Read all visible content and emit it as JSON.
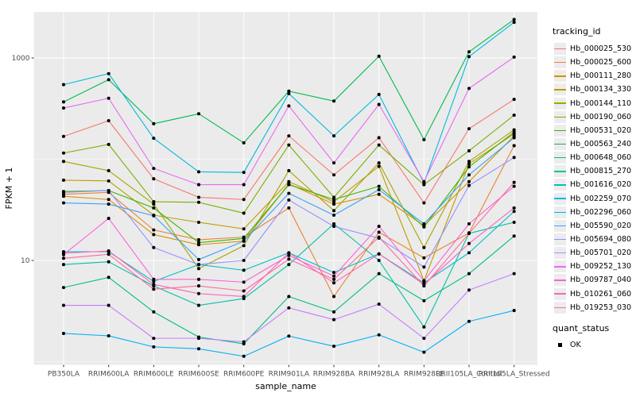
{
  "figure": {
    "background": "#FFFFFF",
    "panel_background": "#EBEBEB",
    "gridline_color": "#FFFFFF",
    "tick_color": "#333333",
    "tick_label_color": "#4D4D4D",
    "axis_title_color": "#000000",
    "point_color": "#000000"
  },
  "chart_data": {
    "type": "line",
    "title": "",
    "xlabel": "sample_name",
    "ylabel": "FPKM + 1",
    "y_scale": "log10",
    "ylim": [
      0.9,
      2900
    ],
    "grid": "on",
    "legend_position": "right",
    "y_ticks": [
      {
        "label": "1000",
        "value": 1000
      },
      {
        "label": "10",
        "value": 10
      }
    ],
    "y_minor_gridlines": [
      100,
      1
    ],
    "categories": [
      "PB350LA",
      "RRIM600LA",
      "RRIM600LE",
      "RRIM600SE",
      "RRIM600PE",
      "RRIM901LA",
      "RRIM928BA",
      "RRIM928LA",
      "RRIM928LE",
      "RRII105LA_Control",
      "RRII105LA_Stressed"
    ],
    "series": [
      {
        "name": "Hb_000025_530",
        "color": "#F8766D",
        "values": [
          168,
          240,
          64,
          42,
          40,
          170,
          70,
          163,
          37,
          200,
          390
        ]
      },
      {
        "name": "Hb_000025_600",
        "color": "#EA8331",
        "values": [
          45,
          47,
          20,
          16,
          17,
          33,
          4.4,
          19,
          10.6,
          18.7,
          136
        ]
      },
      {
        "name": "Hb_000111_280",
        "color": "#D89000",
        "values": [
          43,
          40,
          18,
          14.3,
          15.5,
          57,
          36,
          45,
          22,
          60,
          170
        ]
      },
      {
        "name": "Hb_000134_330",
        "color": "#C09B00",
        "values": [
          62,
          61,
          28,
          23.8,
          20.5,
          60,
          38,
          85,
          6.3,
          90,
          178
        ]
      },
      {
        "name": "Hb_000144_110",
        "color": "#A3A500",
        "values": [
          95,
          77,
          36,
          8.3,
          14,
          77,
          31,
          92,
          13.4,
          95,
          195
        ]
      },
      {
        "name": "Hb_000190_060",
        "color": "#7CAE00",
        "values": [
          115,
          140,
          38,
          37.5,
          29.3,
          138,
          42,
          138,
          56,
          121,
          272
        ]
      },
      {
        "name": "Hb_000531_020",
        "color": "#39B600",
        "values": [
          48,
          49,
          33,
          15,
          16.5,
          56,
          40,
          54,
          21.4,
          84,
          185
        ]
      },
      {
        "name": "Hb_000563_240",
        "color": "#00BB4E",
        "values": [
          368,
          610,
          224,
          281,
          145,
          470,
          375,
          1040,
          156,
          1150,
          2400
        ]
      },
      {
        "name": "Hb_000648_060",
        "color": "#00BF7D",
        "values": [
          5.4,
          6.8,
          3.1,
          1.75,
          1.5,
          4.4,
          3.1,
          7.4,
          4.0,
          7.4,
          17.4
        ]
      },
      {
        "name": "Hb_000815_270",
        "color": "#00C1A3",
        "values": [
          9.1,
          9.7,
          5.6,
          3.6,
          4.2,
          9.1,
          23,
          10,
          2.2,
          18.5,
          23.8
        ]
      },
      {
        "name": "Hb_001616_020",
        "color": "#00BFC4",
        "values": [
          12.2,
          12.2,
          6.2,
          9.1,
          8.0,
          11.9,
          7.6,
          11.6,
          6.0,
          11.9,
          30.5
        ]
      },
      {
        "name": "Hb_002259_070",
        "color": "#00BAE0",
        "values": [
          545,
          700,
          161,
          75,
          74,
          445,
          170,
          436,
          58,
          1030,
          2250
        ]
      },
      {
        "name": "Hb_002296_060",
        "color": "#00B0F6",
        "values": [
          1.9,
          1.8,
          1.4,
          1.34,
          1.13,
          1.79,
          1.42,
          1.84,
          1.24,
          2.5,
          3.2
        ]
      },
      {
        "name": "Hb_005590_020",
        "color": "#35A2FF",
        "values": [
          37,
          36,
          27.6,
          10.2,
          15.5,
          46,
          28,
          50,
          23,
          70,
          163
        ]
      },
      {
        "name": "Hb_005694_080",
        "color": "#9590FF",
        "values": [
          47,
          49,
          13.4,
          9.1,
          10,
          39.5,
          21.7,
          16.6,
          8.6,
          55,
          104
        ]
      },
      {
        "name": "Hb_005701_020",
        "color": "#C77CFF",
        "values": [
          3.6,
          3.6,
          1.7,
          1.7,
          1.57,
          3.4,
          2.6,
          3.7,
          1.7,
          5.1,
          7.4
        ]
      },
      {
        "name": "Hb_009252_130",
        "color": "#E76BF3",
        "values": [
          320,
          400,
          81,
          56,
          56,
          336,
          92,
          347,
          60,
          500,
          1020
        ]
      },
      {
        "name": "Hb_009787_040",
        "color": "#FA62DB",
        "values": [
          11.4,
          26,
          6.5,
          6.5,
          6.1,
          11.2,
          7.0,
          21.7,
          6.3,
          23,
          54
        ]
      },
      {
        "name": "Hb_010261_060",
        "color": "#FF62BC",
        "values": [
          11.8,
          12.4,
          5.8,
          4.7,
          4.4,
          11.9,
          6.0,
          11.6,
          5.8,
          14.7,
          33
        ]
      },
      {
        "name": "Hb_019253_030",
        "color": "#FF6A98",
        "values": [
          10.5,
          11.5,
          5.2,
          5.6,
          5.0,
          10.3,
          6.5,
          17,
          5.6,
          18.5,
          59
        ]
      }
    ],
    "legend": {
      "color_title": "tracking_id",
      "shape_title": "quant_status",
      "shape_items": [
        {
          "label": "OK"
        }
      ]
    }
  }
}
